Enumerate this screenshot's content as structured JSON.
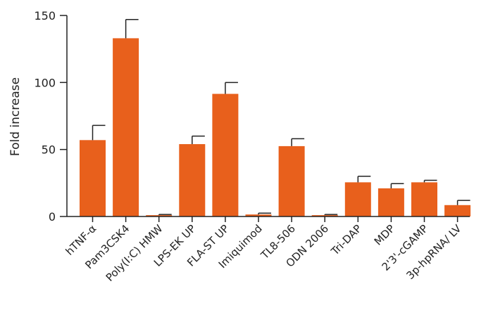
{
  "chart_data": {
    "type": "bar",
    "ylabel": "Fold increase",
    "xlabel": "",
    "title": "",
    "ylim": [
      0,
      150
    ],
    "yticks": [
      0,
      50,
      100,
      150
    ],
    "grid": false,
    "legend": "none",
    "bar_color": "#E8601C",
    "categories": [
      "hTNF-α",
      "Pam3CSK4",
      "Poly(I:C) HMW",
      "LPS-EK UP",
      "FLA-ST UP",
      "Imiquimod",
      "TL8-506",
      "ODN 2006",
      "Tri-DAP",
      "MDP",
      "2'3'-cGAMP",
      "3p-hpRNA/ LV"
    ],
    "values": [
      57,
      133,
      1,
      54,
      91.5,
      1.5,
      52.5,
      1,
      25.5,
      21,
      25.5,
      8.5
    ],
    "errors": [
      11,
      14,
      0.5,
      6,
      8.5,
      1,
      5.5,
      0.5,
      4.5,
      3.5,
      1.5,
      3.5
    ]
  }
}
